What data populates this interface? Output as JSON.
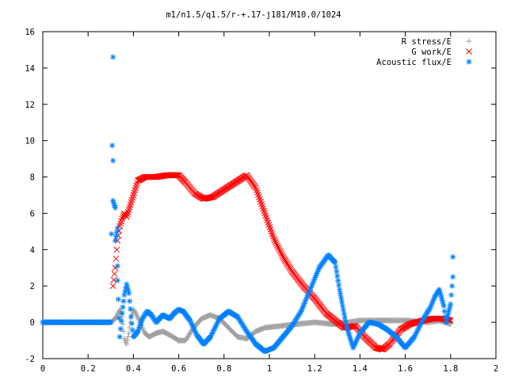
{
  "chart_data": {
    "type": "scatter",
    "title": "m1/n1.5/q1.5/r-+.17-j181/M10.0/1024",
    "xlabel": "",
    "ylabel": "",
    "xlim": [
      0,
      2
    ],
    "ylim": [
      -2,
      16
    ],
    "x_ticks": [
      "0",
      "0.2",
      "0.4",
      "0.6",
      "0.8",
      "1",
      "1.2",
      "1.4",
      "1.6",
      "1.8",
      "2"
    ],
    "y_ticks": [
      "-2",
      "0",
      "2",
      "4",
      "6",
      "8",
      "10",
      "12",
      "14",
      "16"
    ],
    "grid": false,
    "legend_position": "top-right",
    "series": [
      {
        "name": "R stress/E",
        "marker": "+",
        "color": "#a0a0a0",
        "points": [
          [
            0,
            0
          ],
          [
            0.1,
            0
          ],
          [
            0.2,
            0
          ],
          [
            0.3,
            0
          ],
          [
            0.32,
            0.2
          ],
          [
            0.34,
            0.7
          ],
          [
            0.35,
            0.3
          ],
          [
            0.36,
            -0.9
          ],
          [
            0.37,
            -1.2
          ],
          [
            0.38,
            -0.6
          ],
          [
            0.39,
            0.3
          ],
          [
            0.4,
            0.7
          ],
          [
            0.41,
            0.5
          ],
          [
            0.43,
            0.0
          ],
          [
            0.45,
            -0.6
          ],
          [
            0.47,
            -0.8
          ],
          [
            0.5,
            -0.6
          ],
          [
            0.53,
            -0.5
          ],
          [
            0.56,
            -0.7
          ],
          [
            0.6,
            -1.0
          ],
          [
            0.63,
            -1.0
          ],
          [
            0.66,
            -0.4
          ],
          [
            0.7,
            0.2
          ],
          [
            0.74,
            0.4
          ],
          [
            0.78,
            0.2
          ],
          [
            0.82,
            -0.3
          ],
          [
            0.86,
            -0.8
          ],
          [
            0.9,
            -0.9
          ],
          [
            0.94,
            -0.5
          ],
          [
            0.98,
            -0.3
          ],
          [
            1.05,
            -0.2
          ],
          [
            1.12,
            -0.1
          ],
          [
            1.2,
            0.0
          ],
          [
            1.28,
            -0.1
          ],
          [
            1.35,
            0.0
          ],
          [
            1.4,
            0.1
          ],
          [
            1.5,
            0.1
          ],
          [
            1.6,
            0.1
          ],
          [
            1.7,
            0.0
          ],
          [
            1.75,
            0.1
          ],
          [
            1.8,
            -0.1
          ]
        ]
      },
      {
        "name": "G work/E",
        "marker": "x",
        "color": "#ff0000",
        "points": [
          [
            0.31,
            2.0
          ],
          [
            0.32,
            3.0
          ],
          [
            0.33,
            4.5
          ],
          [
            0.34,
            5.3
          ],
          [
            0.35,
            5.7
          ],
          [
            0.36,
            6.0
          ],
          [
            0.37,
            5.8
          ],
          [
            0.38,
            6.2
          ],
          [
            0.4,
            7.0
          ],
          [
            0.42,
            7.8
          ],
          [
            0.45,
            8.0
          ],
          [
            0.5,
            8.0
          ],
          [
            0.55,
            8.1
          ],
          [
            0.6,
            8.1
          ],
          [
            0.63,
            7.7
          ],
          [
            0.67,
            7.1
          ],
          [
            0.71,
            6.8
          ],
          [
            0.75,
            6.9
          ],
          [
            0.8,
            7.3
          ],
          [
            0.85,
            7.7
          ],
          [
            0.9,
            8.1
          ],
          [
            0.94,
            7.4
          ],
          [
            0.98,
            6.0
          ],
          [
            1.02,
            4.6
          ],
          [
            1.06,
            3.6
          ],
          [
            1.1,
            2.8
          ],
          [
            1.15,
            2.0
          ],
          [
            1.2,
            1.3
          ],
          [
            1.25,
            0.5
          ],
          [
            1.3,
            0.0
          ],
          [
            1.33,
            -0.3
          ],
          [
            1.38,
            -0.2
          ],
          [
            1.42,
            -0.8
          ],
          [
            1.47,
            -1.4
          ],
          [
            1.5,
            -1.5
          ],
          [
            1.53,
            -1.2
          ],
          [
            1.58,
            -0.4
          ],
          [
            1.62,
            -0.1
          ],
          [
            1.68,
            0.1
          ],
          [
            1.72,
            0.2
          ],
          [
            1.76,
            0.2
          ],
          [
            1.8,
            0.1
          ]
        ]
      },
      {
        "name": "Acoustic flux/E",
        "marker": "*",
        "color": "#0080ff",
        "points": [
          [
            0,
            0
          ],
          [
            0.1,
            0
          ],
          [
            0.2,
            0
          ],
          [
            0.3,
            0
          ],
          [
            0.31,
            14.6
          ],
          [
            0.31,
            8.9
          ],
          [
            0.31,
            6.7
          ],
          [
            0.32,
            6.3
          ],
          [
            0.32,
            4.5
          ],
          [
            0.33,
            5.2
          ],
          [
            0.33,
            3.1
          ],
          [
            0.33,
            2.3
          ],
          [
            0.34,
            -0.8
          ],
          [
            0.35,
            0.5
          ],
          [
            0.36,
            1.5
          ],
          [
            0.37,
            2.1
          ],
          [
            0.38,
            1.6
          ],
          [
            0.39,
            0.3
          ],
          [
            0.4,
            -0.8
          ],
          [
            0.42,
            -0.5
          ],
          [
            0.44,
            0.2
          ],
          [
            0.46,
            0.6
          ],
          [
            0.48,
            0.4
          ],
          [
            0.5,
            0.0
          ],
          [
            0.53,
            0.4
          ],
          [
            0.56,
            0.2
          ],
          [
            0.58,
            0.5
          ],
          [
            0.6,
            0.7
          ],
          [
            0.62,
            0.6
          ],
          [
            0.65,
            0.1
          ],
          [
            0.68,
            -0.7
          ],
          [
            0.71,
            -1.2
          ],
          [
            0.74,
            -0.8
          ],
          [
            0.78,
            0.2
          ],
          [
            0.82,
            0.6
          ],
          [
            0.86,
            0.3
          ],
          [
            0.9,
            -0.5
          ],
          [
            0.94,
            -1.2
          ],
          [
            0.98,
            -1.6
          ],
          [
            1.02,
            -1.4
          ],
          [
            1.06,
            -0.8
          ],
          [
            1.1,
            -0.2
          ],
          [
            1.14,
            0.6
          ],
          [
            1.18,
            1.8
          ],
          [
            1.22,
            3.0
          ],
          [
            1.26,
            3.7
          ],
          [
            1.29,
            3.3
          ],
          [
            1.31,
            1.8
          ],
          [
            1.34,
            -0.2
          ],
          [
            1.37,
            -1.4
          ],
          [
            1.4,
            -0.6
          ],
          [
            1.44,
            0.0
          ],
          [
            1.48,
            -0.1
          ],
          [
            1.52,
            -0.4
          ],
          [
            1.56,
            -0.8
          ],
          [
            1.6,
            -1.4
          ],
          [
            1.64,
            -0.8
          ],
          [
            1.68,
            0.2
          ],
          [
            1.71,
            0.8
          ],
          [
            1.73,
            1.4
          ],
          [
            1.75,
            1.8
          ],
          [
            1.77,
            0.9
          ],
          [
            1.78,
            0.0
          ],
          [
            1.8,
            1.0
          ],
          [
            1.81,
            2.5
          ],
          [
            1.81,
            3.6
          ]
        ]
      }
    ]
  }
}
